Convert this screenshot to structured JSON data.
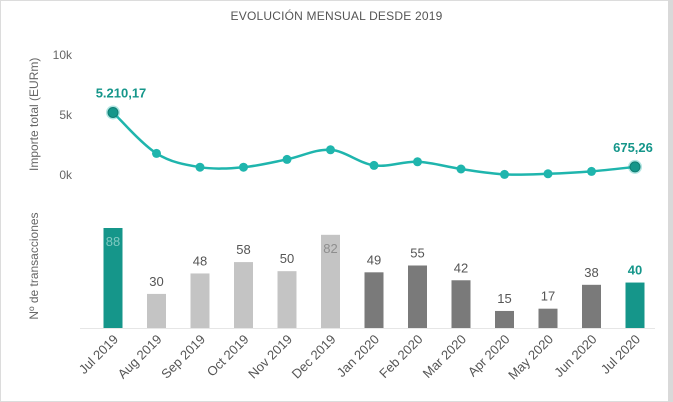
{
  "title": "EVOLUCIÓN MENSUAL DESDE 2019",
  "colors": {
    "teal": "#15968a",
    "line": "#1fb5ad",
    "lightgray": "#c4c4c4",
    "darkgray": "#7a7a7a"
  },
  "chart_data": [
    {
      "type": "line",
      "ylabel": "Importe total (EURm)",
      "yticks": [
        "10k",
        "5k",
        "0k"
      ],
      "ylim": [
        0,
        10000
      ],
      "x": [
        "Jul 2019",
        "Aug 2019",
        "Sep 2019",
        "Oct 2019",
        "Nov 2019",
        "Dec 2019",
        "Jan 2020",
        "Feb 2020",
        "Mar 2020",
        "Apr 2020",
        "May 2020",
        "Jun 2020",
        "Jul 2020"
      ],
      "values": [
        5210.17,
        1800,
        650,
        650,
        1300,
        2100,
        800,
        1100,
        500,
        50,
        100,
        300,
        675.26
      ],
      "labels": [
        {
          "index": 0,
          "text": "5.210,17"
        },
        {
          "index": 12,
          "text": "675,26"
        }
      ],
      "grid": false
    },
    {
      "type": "bar",
      "ylabel": "Nº de transacciones",
      "categories": [
        "Jul 2019",
        "Aug 2019",
        "Sep 2019",
        "Oct 2019",
        "Nov 2019",
        "Dec 2019",
        "Jan 2020",
        "Feb 2020",
        "Mar 2020",
        "Apr 2020",
        "May 2020",
        "Jun 2020",
        "Jul 2020"
      ],
      "values": [
        88,
        30,
        48,
        58,
        50,
        82,
        49,
        55,
        42,
        15,
        17,
        38,
        40
      ],
      "bar_colors": [
        "teal",
        "lightgray",
        "lightgray",
        "lightgray",
        "lightgray",
        "lightgray",
        "darkgray",
        "darkgray",
        "darkgray",
        "darkgray",
        "darkgray",
        "darkgray",
        "teal"
      ],
      "grid": false
    }
  ]
}
